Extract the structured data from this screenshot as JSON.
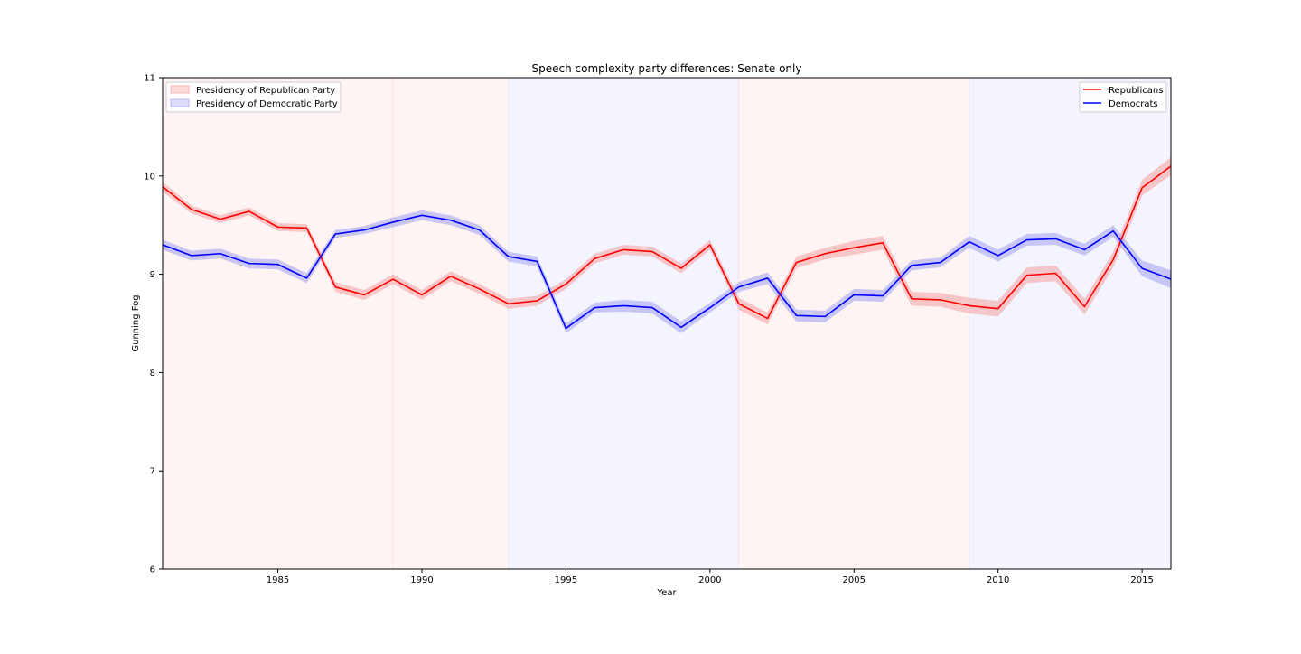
{
  "chart_data": {
    "type": "line",
    "title": "Speech complexity party differences: Senate only",
    "xlabel": "Year",
    "ylabel": "Gunning Fog",
    "xlim": [
      1981,
      2016
    ],
    "ylim": [
      6,
      11
    ],
    "x_ticks": [
      1985,
      1990,
      1995,
      2000,
      2005,
      2010,
      2015
    ],
    "y_ticks": [
      6,
      7,
      8,
      9,
      10,
      11
    ],
    "grid": false,
    "x": [
      1981,
      1982,
      1983,
      1984,
      1985,
      1986,
      1987,
      1988,
      1989,
      1990,
      1991,
      1992,
      1993,
      1994,
      1995,
      1996,
      1997,
      1998,
      1999,
      2000,
      2001,
      2002,
      2003,
      2004,
      2005,
      2006,
      2007,
      2008,
      2009,
      2010,
      2011,
      2012,
      2013,
      2014,
      2015,
      2016
    ],
    "series": [
      {
        "name": "Republicans",
        "color": "#ff0000",
        "band_color": "#f4a6a6",
        "values": [
          9.89,
          9.66,
          9.56,
          9.64,
          9.48,
          9.47,
          8.87,
          8.79,
          8.95,
          8.79,
          8.98,
          8.85,
          8.7,
          8.73,
          8.9,
          9.16,
          9.25,
          9.23,
          9.06,
          9.3,
          8.7,
          8.55,
          9.12,
          9.21,
          9.27,
          9.32,
          8.75,
          8.74,
          8.68,
          8.65,
          8.99,
          9.01,
          8.67,
          9.15,
          9.88,
          10.1
        ],
        "ci": [
          0.05,
          0.04,
          0.04,
          0.04,
          0.04,
          0.04,
          0.05,
          0.05,
          0.05,
          0.05,
          0.05,
          0.05,
          0.05,
          0.05,
          0.05,
          0.05,
          0.05,
          0.05,
          0.05,
          0.05,
          0.06,
          0.06,
          0.06,
          0.06,
          0.07,
          0.07,
          0.07,
          0.07,
          0.08,
          0.08,
          0.08,
          0.08,
          0.08,
          0.08,
          0.08,
          0.09
        ]
      },
      {
        "name": "Democrats",
        "color": "#0000ff",
        "band_color": "#a6a6f4",
        "values": [
          9.3,
          9.19,
          9.21,
          9.11,
          9.1,
          8.96,
          9.41,
          9.45,
          9.53,
          9.6,
          9.55,
          9.45,
          9.18,
          9.13,
          8.45,
          8.66,
          8.68,
          8.66,
          8.46,
          8.66,
          8.87,
          8.96,
          8.58,
          8.57,
          8.79,
          8.78,
          9.09,
          9.12,
          9.33,
          9.19,
          9.35,
          9.36,
          9.25,
          9.44,
          9.06,
          8.95
        ],
        "ci": [
          0.05,
          0.05,
          0.05,
          0.05,
          0.05,
          0.05,
          0.04,
          0.04,
          0.05,
          0.05,
          0.05,
          0.05,
          0.05,
          0.05,
          0.05,
          0.05,
          0.06,
          0.06,
          0.06,
          0.05,
          0.05,
          0.06,
          0.06,
          0.06,
          0.06,
          0.06,
          0.05,
          0.05,
          0.06,
          0.06,
          0.06,
          0.06,
          0.06,
          0.06,
          0.08,
          0.09
        ]
      }
    ],
    "presidency_spans": [
      {
        "party": "Republican",
        "start": 1981,
        "end": 1989,
        "color": "#fff4f4"
      },
      {
        "party": "Republican",
        "start": 1989,
        "end": 1993,
        "color": "#fff4f4"
      },
      {
        "party": "Democratic",
        "start": 1993,
        "end": 2001,
        "color": "#f4f4ff"
      },
      {
        "party": "Republican",
        "start": 2001,
        "end": 2009,
        "color": "#fff4f4"
      },
      {
        "party": "Democratic",
        "start": 2009,
        "end": 2016,
        "color": "#f4f4ff"
      }
    ],
    "legend_left": {
      "placement": "top-left",
      "entries": [
        {
          "label": "Presidency of Republican Party",
          "color": "#fcd9d9",
          "edge": "#f7b7b7"
        },
        {
          "label": "Presidency of Democratic Party",
          "color": "#dcdcfc",
          "edge": "#b7b7f7"
        }
      ]
    },
    "legend_right": {
      "placement": "top-right",
      "entries": [
        {
          "label": "Republicans",
          "color": "#ff0000"
        },
        {
          "label": "Democrats",
          "color": "#0000ff"
        }
      ]
    }
  }
}
